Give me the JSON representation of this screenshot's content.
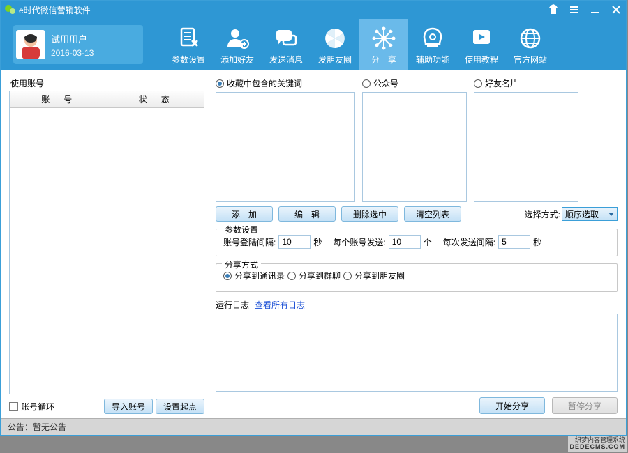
{
  "title": "e时代微信营销软件",
  "user": {
    "name": "试用用户",
    "date": "2016-03-13"
  },
  "toolbar": [
    {
      "key": "params",
      "label": "参数设置"
    },
    {
      "key": "addfriend",
      "label": "添加好友"
    },
    {
      "key": "sendmsg",
      "label": "发送消息"
    },
    {
      "key": "moments",
      "label": "发朋友圈"
    },
    {
      "key": "share",
      "label": "分　享",
      "active": true
    },
    {
      "key": "assist",
      "label": "辅助功能"
    },
    {
      "key": "tutorial",
      "label": "使用教程"
    },
    {
      "key": "website",
      "label": "官方网站"
    }
  ],
  "left": {
    "title": "使用账号",
    "columns": [
      "账　号",
      "状　态"
    ],
    "loop_label": "账号循环",
    "import_btn": "导入账号",
    "setstart_btn": "设置起点"
  },
  "share_sources": {
    "keyword": {
      "label": "收藏中包含的关键词",
      "selected": true
    },
    "official": {
      "label": "公众号",
      "selected": false
    },
    "namecard": {
      "label": "好友名片",
      "selected": false
    }
  },
  "list_buttons": {
    "add": "添　加",
    "edit": "编　辑",
    "del": "删除选中",
    "clear": "清空列表"
  },
  "select_mode": {
    "label": "选择方式:",
    "value": "顺序选取"
  },
  "params": {
    "legend": "参数设置",
    "login_interval_label": "账号登陆间隔:",
    "login_interval": "10",
    "login_unit": "秒",
    "per_account_label": "每个账号发送:",
    "per_account": "10",
    "per_account_unit": "个",
    "send_interval_label": "每次发送间隔:",
    "send_interval": "5",
    "send_interval_unit": "秒"
  },
  "share_mode": {
    "legend": "分享方式",
    "contacts": {
      "label": "分享到通讯录",
      "selected": true
    },
    "group": {
      "label": "分享到群聊",
      "selected": false
    },
    "moments": {
      "label": "分享到朋友圈",
      "selected": false
    }
  },
  "log": {
    "label": "运行日志",
    "link": "查看所有日志"
  },
  "actions": {
    "start": "开始分享",
    "pause": "暂停分享"
  },
  "status": "公告：暂无公告",
  "footer": {
    "l1": "织梦内容管理系统",
    "l2": "DEDECMS.COM"
  },
  "colors": {
    "brand": "#2e97d4",
    "brand_light": "#6abaea",
    "border": "#a9c8e0"
  }
}
